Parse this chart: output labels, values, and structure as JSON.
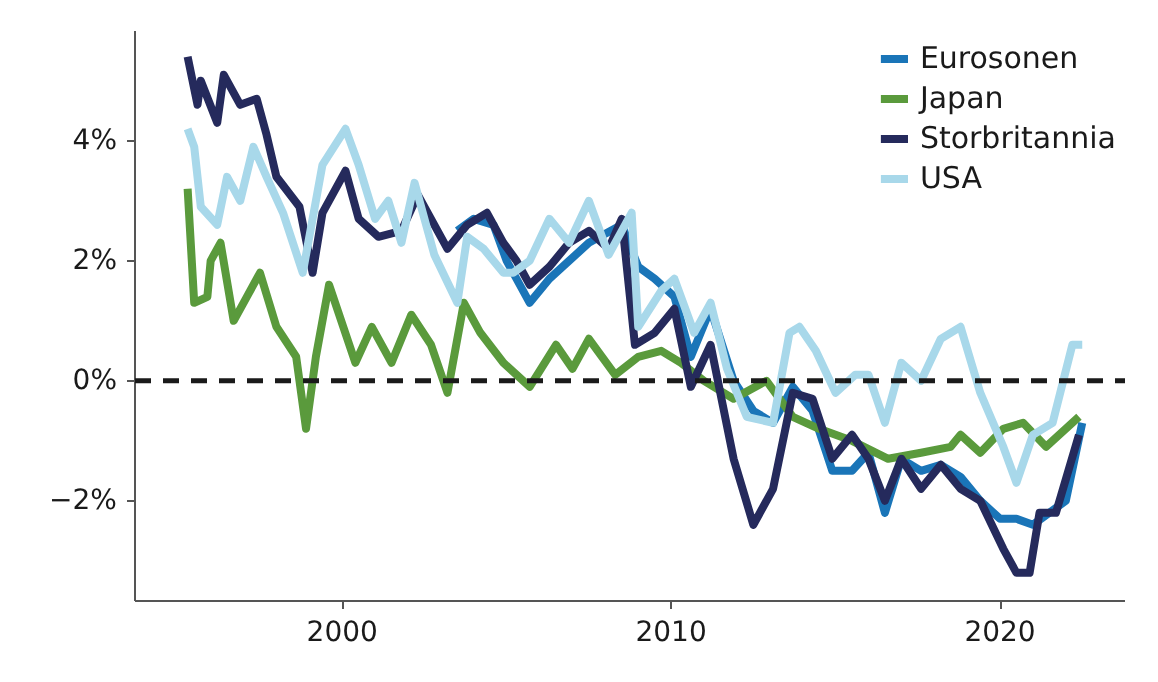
{
  "chart_data": {
    "type": "line",
    "xlim": [
      1993.7,
      2023.8
    ],
    "ylim": [
      -3.67,
      5.83
    ],
    "xticks": [
      2000,
      2010,
      2020
    ],
    "yticks": [
      {
        "value": -2,
        "label": "−2%"
      },
      {
        "value": 0,
        "label": "0%"
      },
      {
        "value": 2,
        "label": "2%"
      },
      {
        "value": 4,
        "label": "4%"
      }
    ],
    "grid": false,
    "legend": "top right",
    "line_style": "solid",
    "marker": "none",
    "ref_lines": [
      {
        "axis": "y",
        "value": 0,
        "color": "#1a1a1a",
        "line_style": "dashed"
      }
    ],
    "series": [
      {
        "name": "Eurosonen",
        "color": "#1a75b8",
        "x": [
          2003.5,
          2004.0,
          2004.6,
          2005.0,
          2005.7,
          2006.3,
          2006.9,
          2007.5,
          2008.5,
          2009.0,
          2009.5,
          2010.1,
          2010.6,
          2011.2,
          2011.9,
          2012.5,
          2013.1,
          2013.7,
          2014.3,
          2014.9,
          2015.5,
          2016.0,
          2016.5,
          2017.0,
          2017.6,
          2018.2,
          2018.8,
          2019.4,
          2020.0,
          2020.5,
          2021.0,
          2021.5,
          2022.0,
          2022.5
        ],
        "values": [
          2.5,
          2.7,
          2.6,
          2.0,
          1.3,
          1.7,
          2.0,
          2.3,
          2.6,
          1.9,
          1.7,
          1.4,
          0.4,
          1.2,
          0.0,
          -0.5,
          -0.7,
          -0.1,
          -0.5,
          -1.5,
          -1.5,
          -1.2,
          -2.2,
          -1.3,
          -1.5,
          -1.4,
          -1.6,
          -2.0,
          -2.3,
          -2.3,
          -2.4,
          -2.2,
          -2.0,
          -0.7
        ]
      },
      {
        "name": "Japan",
        "color": "#5a9a3c",
        "x": [
          1995.3,
          1995.5,
          1995.9,
          1996.0,
          1996.3,
          1996.7,
          1997.1,
          1997.5,
          1998.0,
          1998.6,
          1998.9,
          1999.2,
          1999.6,
          2000.4,
          2000.9,
          2001.5,
          2002.1,
          2002.7,
          2003.2,
          2003.7,
          2004.2,
          2004.9,
          2005.7,
          2006.5,
          2007.0,
          2007.5,
          2008.3,
          2009.0,
          2009.7,
          2010.3,
          2011.0,
          2011.9,
          2012.9,
          2013.7,
          2014.5,
          2015.5,
          2016.6,
          2017.6,
          2018.5,
          2018.8,
          2019.4,
          2020.1,
          2020.7,
          2021.4,
          2022.4
        ],
        "values": [
          3.2,
          1.3,
          1.4,
          2.0,
          2.3,
          1.0,
          1.4,
          1.8,
          0.9,
          0.4,
          -0.8,
          0.4,
          1.6,
          0.3,
          0.9,
          0.3,
          1.1,
          0.6,
          -0.2,
          1.3,
          0.8,
          0.3,
          -0.1,
          0.6,
          0.2,
          0.7,
          0.1,
          0.4,
          0.5,
          0.3,
          0.0,
          -0.3,
          0.0,
          -0.6,
          -0.8,
          -1.0,
          -1.3,
          -1.2,
          -1.1,
          -0.9,
          -1.2,
          -0.8,
          -0.7,
          -1.1,
          -0.6
        ]
      },
      {
        "name": "Storbritannia",
        "color": "#252a5c",
        "x": [
          1995.3,
          1995.6,
          1995.7,
          1996.2,
          1996.4,
          1996.9,
          1997.4,
          1997.7,
          1998.0,
          1998.7,
          1999.1,
          1999.4,
          2000.1,
          2000.5,
          2001.1,
          2001.8,
          2002.3,
          2003.2,
          2003.8,
          2004.4,
          2004.9,
          2005.3,
          2005.7,
          2006.3,
          2006.9,
          2007.5,
          2008.1,
          2008.5,
          2008.9,
          2009.5,
          2010.1,
          2010.6,
          2011.2,
          2011.9,
          2012.5,
          2013.1,
          2013.7,
          2014.3,
          2014.9,
          2015.5,
          2016.0,
          2016.5,
          2017.0,
          2017.6,
          2018.2,
          2018.8,
          2019.4,
          2020.1,
          2020.5,
          2020.9,
          2021.2,
          2021.7,
          2022.4
        ],
        "values": [
          5.4,
          4.6,
          5.0,
          4.3,
          5.1,
          4.6,
          4.7,
          4.1,
          3.4,
          2.9,
          1.8,
          2.8,
          3.5,
          2.7,
          2.4,
          2.5,
          3.1,
          2.2,
          2.6,
          2.8,
          2.3,
          2.0,
          1.6,
          1.9,
          2.3,
          2.5,
          2.2,
          2.7,
          0.6,
          0.8,
          1.2,
          -0.1,
          0.6,
          -1.3,
          -2.4,
          -1.8,
          -0.2,
          -0.3,
          -1.3,
          -0.9,
          -1.3,
          -2.0,
          -1.3,
          -1.8,
          -1.4,
          -1.8,
          -2.0,
          -2.8,
          -3.2,
          -3.2,
          -2.2,
          -2.2,
          -0.9
        ]
      },
      {
        "name": "USA",
        "color": "#a8d8ea",
        "x": [
          1995.3,
          1995.5,
          1995.7,
          1996.2,
          1996.5,
          1996.9,
          1997.3,
          1997.7,
          1998.2,
          1998.8,
          1999.4,
          2000.1,
          2000.5,
          2001.0,
          2001.4,
          2001.8,
          2002.2,
          2002.8,
          2003.5,
          2003.8,
          2004.3,
          2004.9,
          2005.2,
          2005.7,
          2006.3,
          2006.9,
          2007.5,
          2008.1,
          2008.8,
          2009.0,
          2009.7,
          2010.1,
          2010.7,
          2011.2,
          2011.7,
          2012.3,
          2013.1,
          2013.6,
          2013.9,
          2014.4,
          2015.0,
          2015.6,
          2016.0,
          2016.5,
          2017.0,
          2017.6,
          2018.2,
          2018.8,
          2019.4,
          2020.1,
          2020.5,
          2021.0,
          2021.6,
          2022.2,
          2022.5
        ],
        "values": [
          4.2,
          3.9,
          2.9,
          2.6,
          3.4,
          3.0,
          3.9,
          3.4,
          2.8,
          1.8,
          3.6,
          4.2,
          3.6,
          2.7,
          3.0,
          2.3,
          3.3,
          2.1,
          1.3,
          2.4,
          2.2,
          1.8,
          1.8,
          2.0,
          2.7,
          2.3,
          3.0,
          2.1,
          2.8,
          0.9,
          1.5,
          1.7,
          0.8,
          1.3,
          0.2,
          -0.6,
          -0.7,
          0.8,
          0.9,
          0.5,
          -0.2,
          0.1,
          0.1,
          -0.7,
          0.3,
          0.0,
          0.7,
          0.9,
          -0.2,
          -1.1,
          -1.7,
          -0.9,
          -0.7,
          0.6,
          0.6
        ]
      }
    ]
  }
}
